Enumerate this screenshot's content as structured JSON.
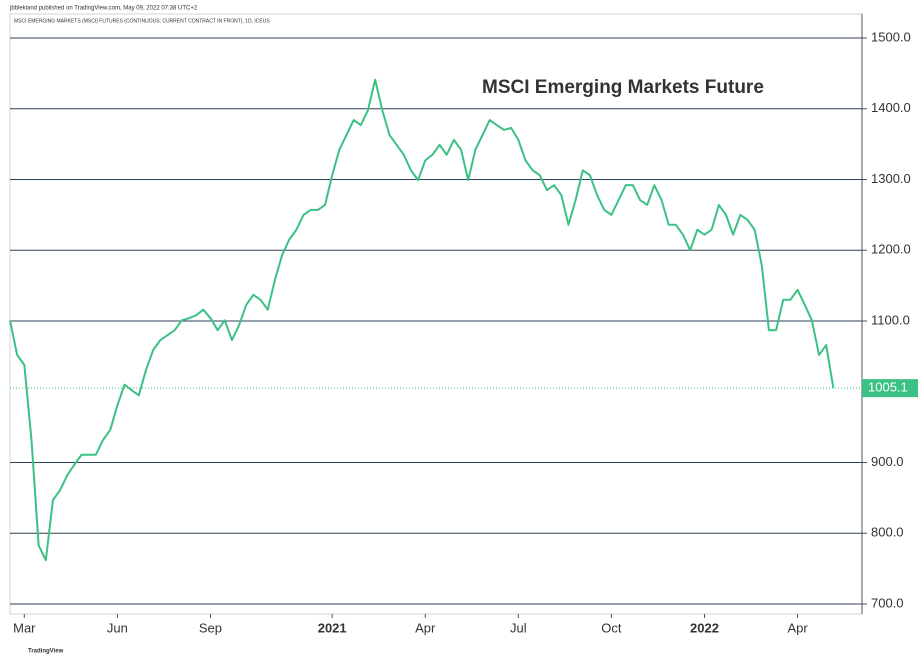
{
  "chart_data": {
    "type": "line",
    "header": "jbblekland published on TradingView.com, May 09, 2022 07:38 UTC+2",
    "subtitle": "MSCI EMERGING MARKETS (MSCI) FUTURES (CONTINUOUS: CURRENT CONTRACT IN FRONT), 1D, ICEUS",
    "title": "MSCI Emerging Markets Future",
    "footer": "TradingView",
    "series": [
      {
        "name": "MSCI Emerging Markets Future",
        "color": "#3cc184",
        "values": [
          1101,
          1052,
          1038,
          932,
          783,
          762,
          847,
          861,
          882,
          897,
          911,
          911,
          911,
          932,
          946,
          981,
          1010,
          1002,
          995,
          1031,
          1059,
          1073,
          1080,
          1087,
          1101,
          1104,
          1108,
          1116,
          1104,
          1087,
          1101,
          1073,
          1094,
          1123,
          1137,
          1130,
          1116,
          1158,
          1193,
          1215,
          1229,
          1250,
          1257,
          1257,
          1264,
          1306,
          1342,
          1363,
          1384,
          1377,
          1398,
          1441,
          1398,
          1363,
          1349,
          1335,
          1313,
          1299,
          1327,
          1335,
          1349,
          1335,
          1356,
          1342,
          1299,
          1342,
          1363,
          1384,
          1377,
          1370,
          1373,
          1356,
          1327,
          1313,
          1306,
          1285,
          1292,
          1278,
          1236,
          1271,
          1313,
          1306,
          1278,
          1257,
          1250,
          1271,
          1292,
          1292,
          1271,
          1264,
          1292,
          1271,
          1236,
          1236,
          1222,
          1200,
          1229,
          1222,
          1229,
          1264,
          1250,
          1222,
          1250,
          1243,
          1229,
          1179,
          1087,
          1087,
          1130,
          1130,
          1144,
          1123,
          1101,
          1052,
          1066,
          1005.1
        ]
      }
    ],
    "xlim": [
      0,
      119
    ],
    "xticks": [
      {
        "value": 2,
        "label": "Mar"
      },
      {
        "value": 15,
        "label": "Jun"
      },
      {
        "value": 28,
        "label": "Sep"
      },
      {
        "value": 45,
        "label": "2021"
      },
      {
        "value": 58,
        "label": "Apr"
      },
      {
        "value": 71,
        "label": "Jul"
      },
      {
        "value": 84,
        "label": "Oct"
      },
      {
        "value": 97,
        "label": "2022"
      },
      {
        "value": 110,
        "label": "Apr"
      }
    ],
    "ylim": [
      700,
      1500
    ],
    "yticks": [
      {
        "value": 700,
        "label": "700.0"
      },
      {
        "value": 800,
        "label": "800.0"
      },
      {
        "value": 900,
        "label": "900.0"
      },
      {
        "value": 1100,
        "label": "1100.0"
      },
      {
        "value": 1200,
        "label": "1200.0"
      },
      {
        "value": 1300,
        "label": "1300.0"
      },
      {
        "value": 1400,
        "label": "1400.0"
      },
      {
        "value": 1500,
        "label": "1500.0"
      }
    ],
    "grid": true
  }
}
